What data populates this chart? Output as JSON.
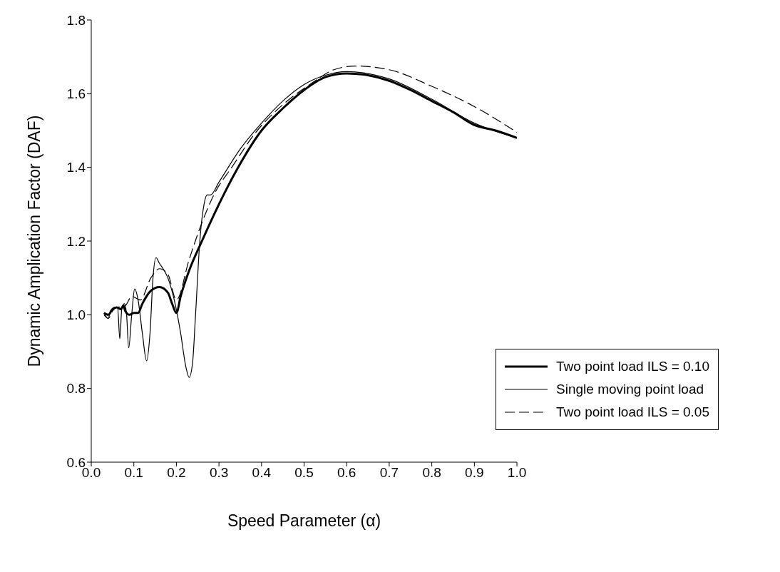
{
  "chart_data": {
    "type": "line",
    "xlabel": "Speed Parameter (α)",
    "ylabel": "Dynamic Amplication Factor (DAF)",
    "xlim": [
      0,
      1
    ],
    "ylim": [
      0.6,
      1.8
    ],
    "xticks": [
      {
        "value": 0,
        "label": "0.0"
      },
      {
        "value": 0.1,
        "label": "0.1"
      },
      {
        "value": 0.2,
        "label": "0.2"
      },
      {
        "value": 0.3,
        "label": "0.3"
      },
      {
        "value": 0.4,
        "label": "0.4"
      },
      {
        "value": 0.5,
        "label": "0.5"
      },
      {
        "value": 0.6,
        "label": "0.6"
      },
      {
        "value": 0.7,
        "label": "0.7"
      },
      {
        "value": 0.8,
        "label": "0.8"
      },
      {
        "value": 0.9,
        "label": "0.9"
      },
      {
        "value": 1,
        "label": "1.0"
      }
    ],
    "yticks": [
      {
        "value": 0.6,
        "label": "0.6"
      },
      {
        "value": 0.8,
        "label": "0.8"
      },
      {
        "value": 1,
        "label": "1.0"
      },
      {
        "value": 1.2,
        "label": "1.2"
      },
      {
        "value": 1.4,
        "label": "1.4"
      },
      {
        "value": 1.6,
        "label": "1.6"
      },
      {
        "value": 1.8,
        "label": "1.8"
      }
    ],
    "grid": false,
    "legend": "bottom right",
    "marker": "none",
    "series": [
      {
        "name": "Two point load ILS = 0.10",
        "color": "#000000",
        "line_style": "solid",
        "x": [
          0.03,
          0.04,
          0.05,
          0.06,
          0.07,
          0.075,
          0.08,
          0.09,
          0.1,
          0.11,
          0.12,
          0.14,
          0.16,
          0.18,
          0.19,
          0.2,
          0.21,
          0.23,
          0.26,
          0.3,
          0.345,
          0.4,
          0.45,
          0.5,
          0.55,
          0.6,
          0.65,
          0.7,
          0.75,
          0.8,
          0.85,
          0.9,
          0.95,
          1.0
        ],
        "values": [
          1.005,
          1.0,
          1.015,
          1.02,
          1.015,
          1.025,
          1.01,
          1.0,
          1.005,
          1.005,
          1.03,
          1.065,
          1.075,
          1.06,
          1.03,
          1.005,
          1.05,
          1.12,
          1.2,
          1.3,
          1.4,
          1.5,
          1.56,
          1.61,
          1.645,
          1.655,
          1.65,
          1.635,
          1.61,
          1.58,
          1.55,
          1.515,
          1.5,
          1.48
        ]
      },
      {
        "name": "Single moving point load",
        "color": "#000000",
        "line_style": "solid",
        "x": [
          0.03,
          0.04,
          0.045,
          0.055,
          0.062,
          0.067,
          0.072,
          0.078,
          0.083,
          0.088,
          0.095,
          0.102,
          0.11,
          0.12,
          0.13,
          0.138,
          0.145,
          0.152,
          0.16,
          0.18,
          0.195,
          0.21,
          0.222,
          0.23,
          0.238,
          0.245,
          0.255,
          0.265,
          0.272,
          0.28,
          0.3,
          0.35,
          0.4,
          0.45,
          0.5,
          0.55,
          0.6,
          0.7,
          0.8,
          0.9,
          1.0
        ],
        "values": [
          1.0,
          0.99,
          1.01,
          1.02,
          1.02,
          0.935,
          1.02,
          1.03,
          1.0,
          0.91,
          1.0,
          1.07,
          1.04,
          0.95,
          0.875,
          0.95,
          1.1,
          1.155,
          1.14,
          1.1,
          1.04,
          0.95,
          0.86,
          0.83,
          0.87,
          1.0,
          1.2,
          1.3,
          1.325,
          1.325,
          1.36,
          1.45,
          1.52,
          1.58,
          1.625,
          1.65,
          1.66,
          1.64,
          1.585,
          1.52,
          1.48
        ]
      },
      {
        "name": "Two point load ILS = 0.05",
        "color": "#000000",
        "line_style": "dashed",
        "x": [
          0.03,
          0.04,
          0.05,
          0.06,
          0.08,
          0.095,
          0.115,
          0.14,
          0.16,
          0.18,
          0.2,
          0.23,
          0.26,
          0.29,
          0.33,
          0.39,
          0.45,
          0.52,
          0.57,
          0.62,
          0.7,
          0.8,
          0.9,
          1.0
        ],
        "values": [
          1.005,
          0.99,
          1.01,
          1.02,
          1.025,
          1.05,
          1.04,
          1.1,
          1.125,
          1.11,
          1.04,
          1.15,
          1.25,
          1.33,
          1.4,
          1.5,
          1.57,
          1.63,
          1.665,
          1.675,
          1.665,
          1.62,
          1.565,
          1.495
        ]
      }
    ]
  }
}
